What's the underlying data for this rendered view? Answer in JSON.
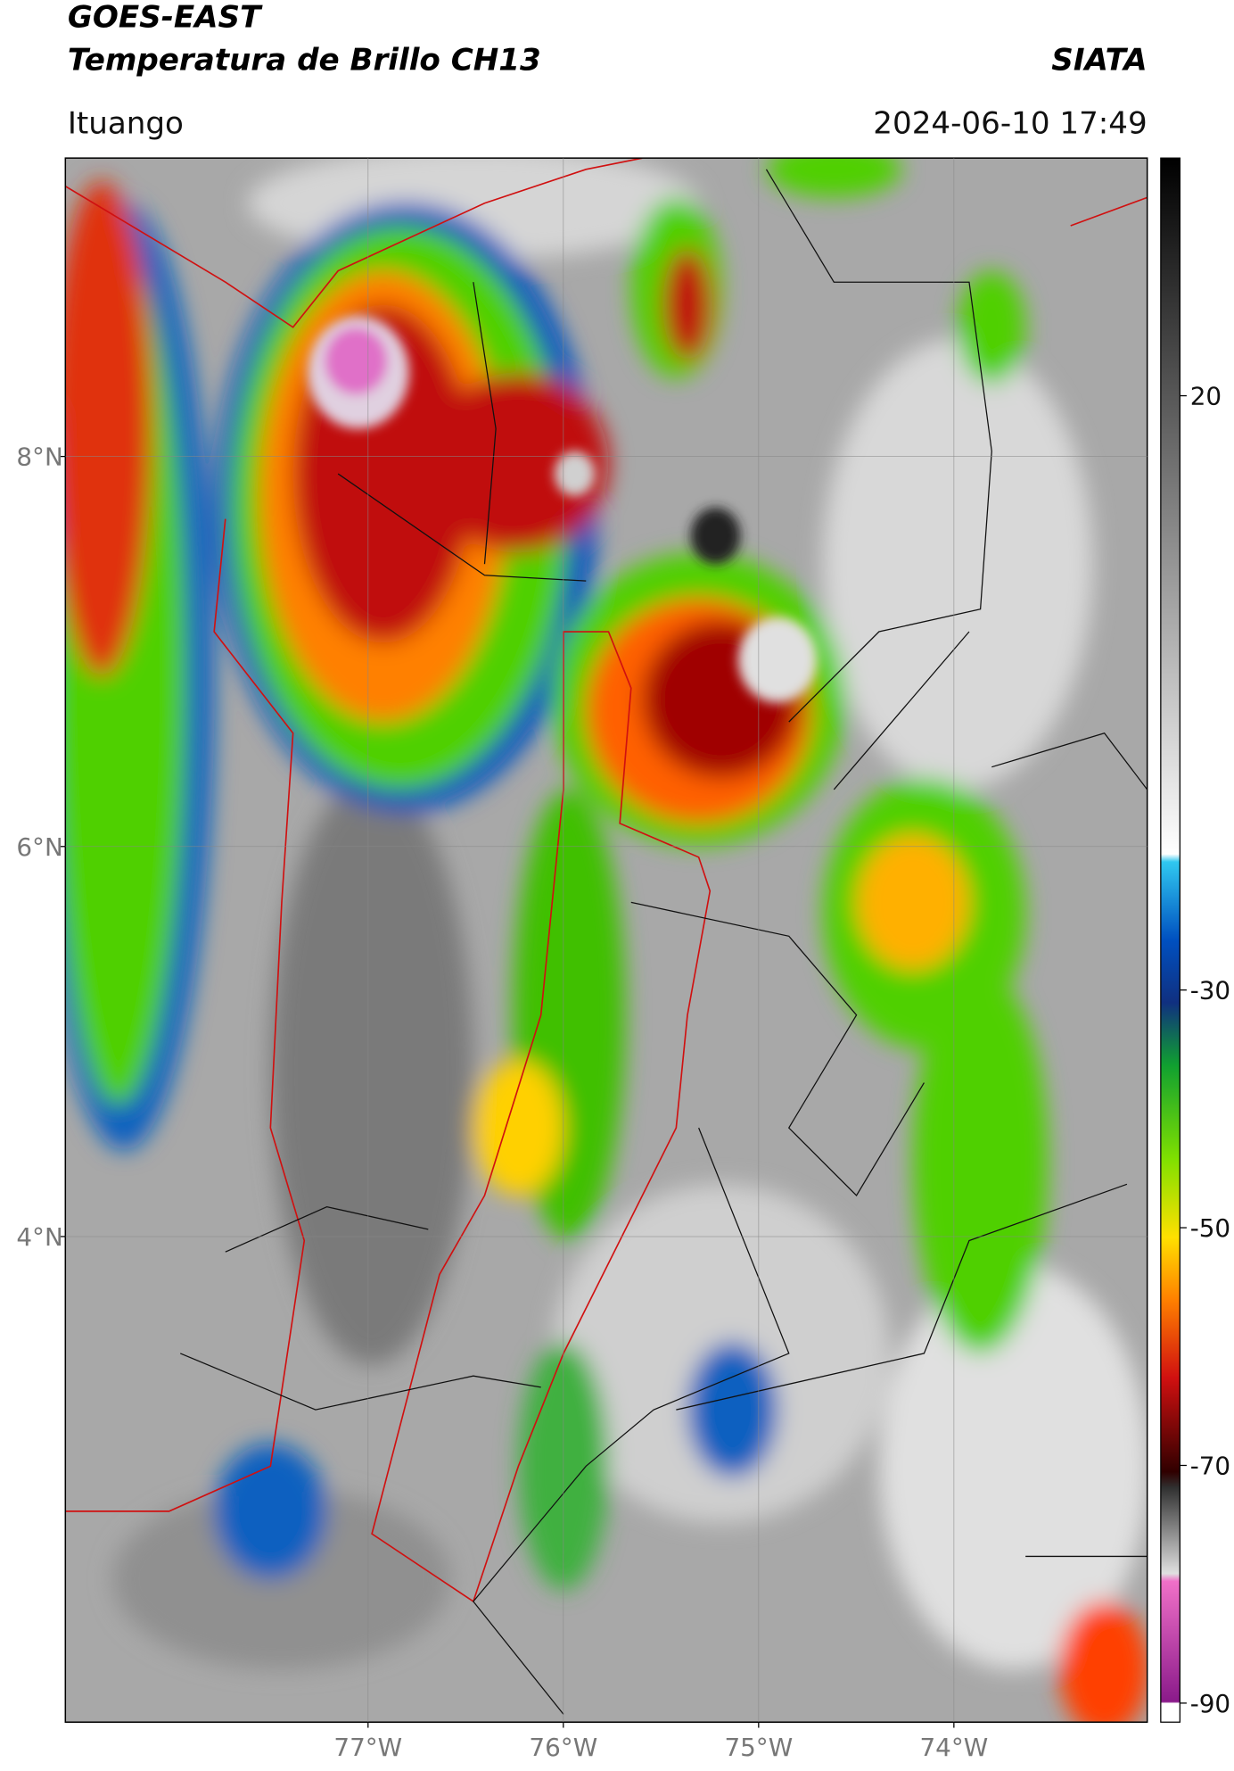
{
  "header": {
    "title": "GOES-EAST",
    "subtitle": "Temperatura de Brillo CH13",
    "agency": "SIATA",
    "region": "Ituango",
    "timestamp": "2024-06-10 17:49"
  },
  "map": {
    "lonlim": [
      -78.55,
      -73.01
    ],
    "latlim": [
      1.51,
      9.53
    ],
    "lon_ticks": [
      {
        "value": -77,
        "label": "77°W"
      },
      {
        "value": -76,
        "label": "76°W"
      },
      {
        "value": -75,
        "label": "75°W"
      },
      {
        "value": -74,
        "label": "74°W"
      }
    ],
    "lat_ticks": [
      {
        "value": 8,
        "label": "8°N"
      },
      {
        "value": 6,
        "label": "6°N"
      },
      {
        "value": 4,
        "label": "4°N"
      }
    ]
  },
  "colorbar": {
    "lim": [
      -91.6,
      40
    ],
    "ticks": [
      20,
      -30,
      -50,
      -70,
      -90
    ]
  }
}
